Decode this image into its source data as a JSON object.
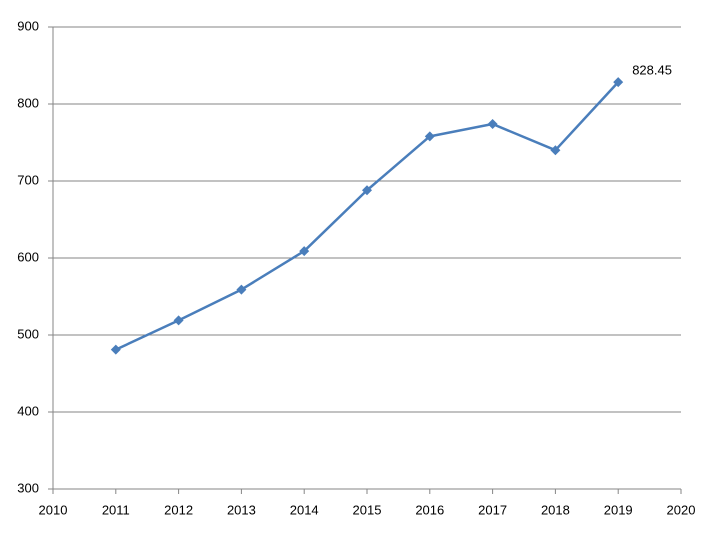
{
  "chart_data": {
    "type": "line",
    "x": [
      2011,
      2012,
      2013,
      2014,
      2015,
      2016,
      2017,
      2018,
      2019
    ],
    "values": [
      481,
      519,
      559,
      609,
      688,
      758,
      774,
      740,
      828.45
    ],
    "value_labels": [
      null,
      null,
      null,
      null,
      null,
      null,
      null,
      null,
      "828.45"
    ],
    "color": "#4a7ebb",
    "xlim": [
      2010,
      2020
    ],
    "xticks": [
      2010,
      2011,
      2012,
      2013,
      2014,
      2015,
      2016,
      2017,
      2018,
      2019,
      2020
    ],
    "ylim": [
      300,
      900
    ],
    "yticks": [
      300,
      400,
      500,
      600,
      700,
      800,
      900
    ],
    "grid": true
  }
}
